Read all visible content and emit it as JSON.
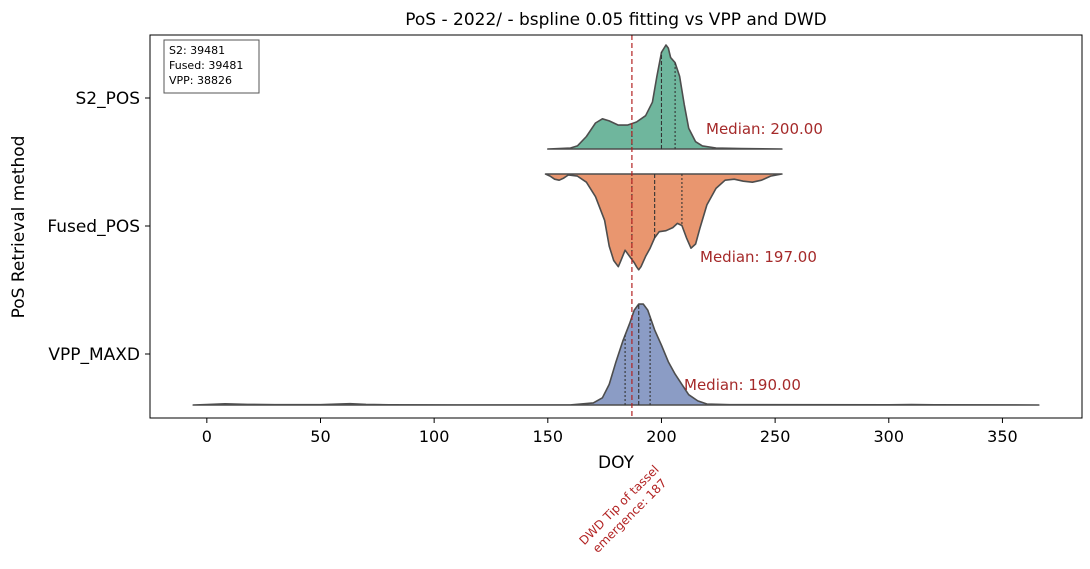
{
  "chart_data": {
    "type": "violin",
    "title": "PoS - 2022/ - bspline 0.05 fitting vs VPP and DWD",
    "xlabel": "DOY",
    "ylabel": "PoS Retrieval method",
    "xlim": [
      -25,
      385
    ],
    "xticks": [
      0,
      50,
      100,
      150,
      200,
      250,
      300,
      350
    ],
    "grid": false,
    "categories": [
      "S2_POS",
      "Fused_POS",
      "VPP_MAXD"
    ],
    "legend_box": {
      "position": "top-left",
      "lines": [
        "S2: 39481",
        "Fused: 39481",
        "VPP: 38826"
      ]
    },
    "reference_line": {
      "x": 187,
      "label": "DWD Tip of tassel\nemergence: 187",
      "color": "#b22222"
    },
    "series": [
      {
        "name": "S2_POS",
        "side": "upper",
        "color": "#6fb69d",
        "range": [
          150,
          253
        ],
        "median": 200,
        "quartiles": [
          187,
          200,
          206
        ],
        "median_label": "Median: 200.00",
        "density": [
          [
            150,
            0
          ],
          [
            160,
            0.01
          ],
          [
            163,
            0.03
          ],
          [
            167,
            0.12
          ],
          [
            171,
            0.25
          ],
          [
            174,
            0.29
          ],
          [
            177,
            0.27
          ],
          [
            181,
            0.23
          ],
          [
            185,
            0.23
          ],
          [
            189,
            0.26
          ],
          [
            193,
            0.32
          ],
          [
            196,
            0.45
          ],
          [
            198,
            0.7
          ],
          [
            200,
            0.93
          ],
          [
            202,
            1.0
          ],
          [
            203,
            0.97
          ],
          [
            204,
            0.88
          ],
          [
            206,
            0.83
          ],
          [
            208,
            0.7
          ],
          [
            210,
            0.43
          ],
          [
            212,
            0.2
          ],
          [
            215,
            0.07
          ],
          [
            218,
            0.03
          ],
          [
            224,
            0.01
          ],
          [
            235,
            0.005
          ],
          [
            253,
            0
          ]
        ]
      },
      {
        "name": "Fused_POS",
        "side": "lower",
        "color": "#e9966f",
        "range": [
          149,
          253
        ],
        "median": 197,
        "quartiles": [
          187,
          197,
          209
        ],
        "median_label": "Median: 197.00",
        "density": [
          [
            149,
            0
          ],
          [
            151,
            0.02
          ],
          [
            153,
            0.05
          ],
          [
            155,
            0.06
          ],
          [
            157,
            0.04
          ],
          [
            159,
            0.01
          ],
          [
            163,
            0.02
          ],
          [
            167,
            0.08
          ],
          [
            171,
            0.22
          ],
          [
            175,
            0.45
          ],
          [
            177,
            0.7
          ],
          [
            179,
            0.84
          ],
          [
            181,
            0.9
          ],
          [
            182,
            0.85
          ],
          [
            184,
            0.74
          ],
          [
            186,
            0.8
          ],
          [
            188,
            0.86
          ],
          [
            189,
            0.9
          ],
          [
            190,
            0.93
          ],
          [
            191,
            0.9
          ],
          [
            193,
            0.8
          ],
          [
            195,
            0.72
          ],
          [
            197,
            0.62
          ],
          [
            199,
            0.56
          ],
          [
            202,
            0.55
          ],
          [
            205,
            0.52
          ],
          [
            207,
            0.48
          ],
          [
            209,
            0.5
          ],
          [
            211,
            0.62
          ],
          [
            213,
            0.72
          ],
          [
            215,
            0.68
          ],
          [
            217,
            0.52
          ],
          [
            220,
            0.3
          ],
          [
            224,
            0.14
          ],
          [
            228,
            0.06
          ],
          [
            232,
            0.05
          ],
          [
            236,
            0.07
          ],
          [
            240,
            0.08
          ],
          [
            244,
            0.06
          ],
          [
            248,
            0.02
          ],
          [
            253,
            0
          ]
        ]
      },
      {
        "name": "VPP_MAXD",
        "side": "upper",
        "color": "#8b9cc5",
        "range": [
          -6,
          366
        ],
        "median": 190,
        "quartiles": [
          184,
          190,
          195
        ],
        "median_label": "Median: 190.00",
        "density": [
          [
            -6,
            0
          ],
          [
            0,
            0.005
          ],
          [
            8,
            0.012
          ],
          [
            18,
            0.006
          ],
          [
            30,
            0.003
          ],
          [
            50,
            0.003
          ],
          [
            58,
            0.01
          ],
          [
            63,
            0.013
          ],
          [
            70,
            0.006
          ],
          [
            80,
            0.002
          ],
          [
            110,
            0.001
          ],
          [
            160,
            0.001
          ],
          [
            170,
            0.02
          ],
          [
            174,
            0.07
          ],
          [
            177,
            0.2
          ],
          [
            180,
            0.42
          ],
          [
            183,
            0.62
          ],
          [
            186,
            0.79
          ],
          [
            188,
            0.92
          ],
          [
            190,
            0.98
          ],
          [
            192,
            0.98
          ],
          [
            194,
            0.92
          ],
          [
            197,
            0.73
          ],
          [
            200,
            0.58
          ],
          [
            203,
            0.42
          ],
          [
            206,
            0.3
          ],
          [
            209,
            0.2
          ],
          [
            212,
            0.1
          ],
          [
            216,
            0.04
          ],
          [
            220,
            0.01
          ],
          [
            230,
            0.003
          ],
          [
            300,
            0.002
          ],
          [
            310,
            0.004
          ],
          [
            320,
            0.002
          ],
          [
            366,
            0
          ]
        ]
      }
    ]
  }
}
